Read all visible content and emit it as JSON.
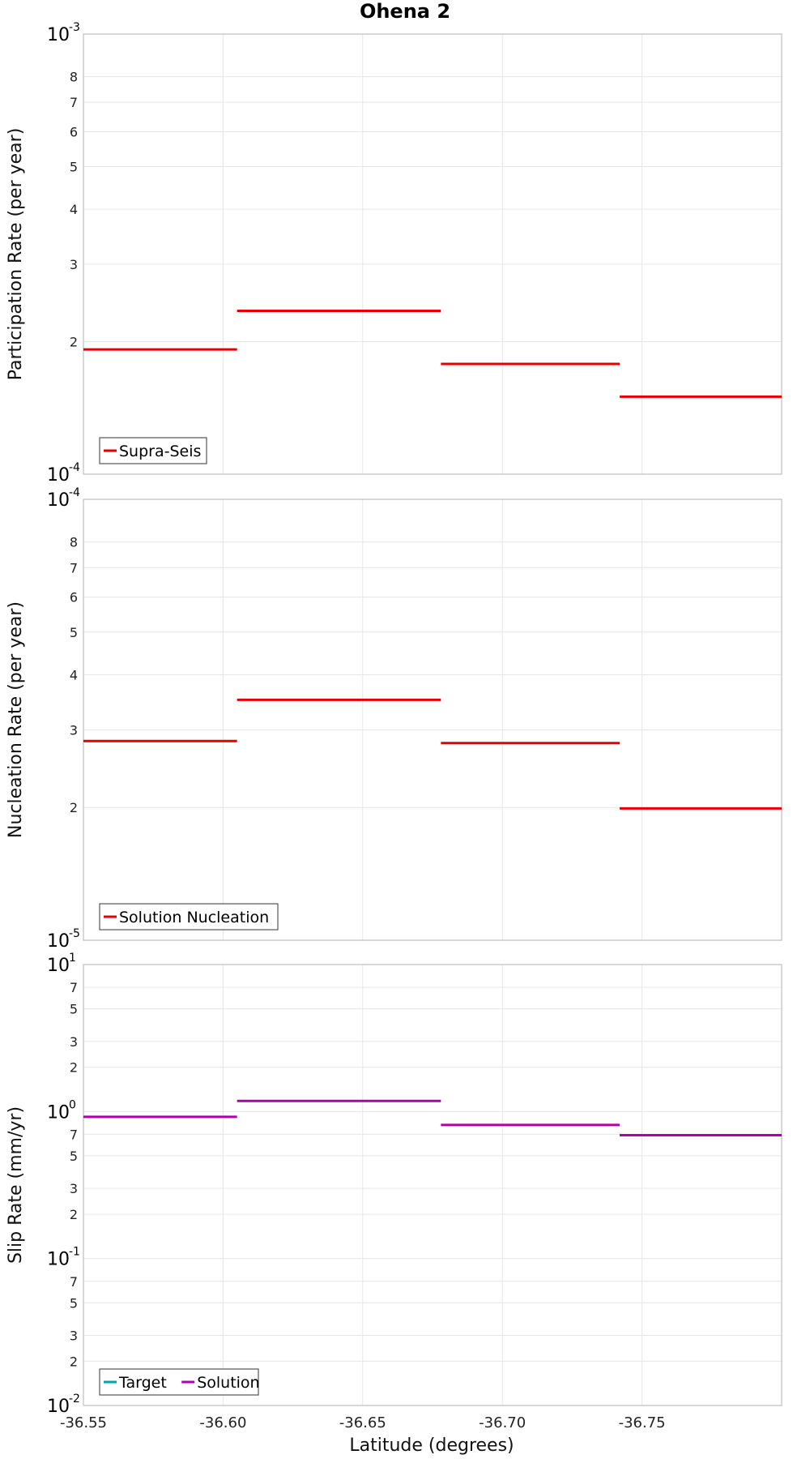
{
  "figure": {
    "title": "Ohena 2",
    "xlabel": "Latitude (degrees)",
    "x_tick_labels": [
      "-36.55",
      "-36.60",
      "-36.65",
      "-36.70",
      "-36.75"
    ]
  },
  "colors": {
    "supra_seis": "#e60000",
    "nucleation": "#e60000",
    "target": "#00a8a8",
    "solution": "#b000b0",
    "grid": "#e6e6e6",
    "frame": "#bdbdbd"
  },
  "chart_data": [
    {
      "type": "line",
      "step": true,
      "ylabel": "Participation Rate (per year)",
      "yscale": "log",
      "ylim": [
        0.0001,
        0.001
      ],
      "xlim": [
        -36.55,
        -36.8
      ],
      "grid": true,
      "legend_placement": "bottom-left",
      "y_major_ticks": [
        {
          "base": "10",
          "exp": "-3",
          "value": 0.001
        },
        {
          "base": "10",
          "exp": "-4",
          "value": 0.0001
        }
      ],
      "y_minor_ticks": [
        {
          "label": "8",
          "value": 0.0008
        },
        {
          "label": "7",
          "value": 0.0007
        },
        {
          "label": "6",
          "value": 0.0006
        },
        {
          "label": "5",
          "value": 0.0005
        },
        {
          "label": "4",
          "value": 0.0004
        },
        {
          "label": "3",
          "value": 0.0003
        },
        {
          "label": "2",
          "value": 0.0002
        }
      ],
      "series": [
        {
          "name": "Supra-Seis",
          "color_key": "supra_seis",
          "segments": [
            {
              "x0": -36.55,
              "x1": -36.605,
              "y": 0.000192
            },
            {
              "x0": -36.605,
              "x1": -36.678,
              "y": 0.000235
            },
            {
              "x0": -36.678,
              "x1": -36.742,
              "y": 0.000178
            },
            {
              "x0": -36.742,
              "x1": -36.8,
              "y": 0.00015
            }
          ]
        }
      ]
    },
    {
      "type": "line",
      "step": true,
      "ylabel": "Nucleation Rate (per year)",
      "yscale": "log",
      "ylim": [
        1e-05,
        0.0001
      ],
      "xlim": [
        -36.55,
        -36.8
      ],
      "grid": true,
      "legend_placement": "bottom-left",
      "y_major_ticks": [
        {
          "base": "10",
          "exp": "-4",
          "value": 0.0001
        },
        {
          "base": "10",
          "exp": "-5",
          "value": 1e-05
        }
      ],
      "y_minor_ticks": [
        {
          "label": "8",
          "value": 8e-05
        },
        {
          "label": "7",
          "value": 7e-05
        },
        {
          "label": "6",
          "value": 6e-05
        },
        {
          "label": "5",
          "value": 5e-05
        },
        {
          "label": "4",
          "value": 4e-05
        },
        {
          "label": "3",
          "value": 3e-05
        },
        {
          "label": "2",
          "value": 2e-05
        }
      ],
      "series": [
        {
          "name": "Solution Nucleation",
          "color_key": "nucleation",
          "segments": [
            {
              "x0": -36.55,
              "x1": -36.605,
              "y": 2.83e-05
            },
            {
              "x0": -36.605,
              "x1": -36.678,
              "y": 3.51e-05
            },
            {
              "x0": -36.678,
              "x1": -36.742,
              "y": 2.8e-05
            },
            {
              "x0": -36.742,
              "x1": -36.8,
              "y": 1.99e-05
            }
          ]
        }
      ]
    },
    {
      "type": "line",
      "step": true,
      "ylabel": "Slip Rate (mm/yr)",
      "yscale": "log",
      "ylim": [
        0.01,
        10
      ],
      "xlim": [
        -36.55,
        -36.8
      ],
      "grid": true,
      "legend_placement": "bottom-left",
      "y_major_ticks": [
        {
          "base": "10",
          "exp": "1",
          "value": 10
        },
        {
          "base": "10",
          "exp": "0",
          "value": 1
        },
        {
          "base": "10",
          "exp": "-1",
          "value": 0.1
        },
        {
          "base": "10",
          "exp": "-2",
          "value": 0.01
        }
      ],
      "y_minor_ticks": [
        {
          "label": "7",
          "value": 7
        },
        {
          "label": "5",
          "value": 5
        },
        {
          "label": "3",
          "value": 3
        },
        {
          "label": "2",
          "value": 2
        },
        {
          "label": "7",
          "value": 0.7
        },
        {
          "label": "5",
          "value": 0.5
        },
        {
          "label": "3",
          "value": 0.3
        },
        {
          "label": "2",
          "value": 0.2
        },
        {
          "label": "7",
          "value": 0.07
        },
        {
          "label": "5",
          "value": 0.05
        },
        {
          "label": "3",
          "value": 0.03
        },
        {
          "label": "2",
          "value": 0.02
        }
      ],
      "series": [
        {
          "name": "Target",
          "color_key": "target",
          "segments": []
        },
        {
          "name": "Solution",
          "color_key": "solution",
          "segments": [
            {
              "x0": -36.55,
              "x1": -36.605,
              "y": 0.92
            },
            {
              "x0": -36.605,
              "x1": -36.678,
              "y": 1.18
            },
            {
              "x0": -36.678,
              "x1": -36.742,
              "y": 0.81
            },
            {
              "x0": -36.742,
              "x1": -36.8,
              "y": 0.69
            }
          ]
        }
      ]
    }
  ]
}
